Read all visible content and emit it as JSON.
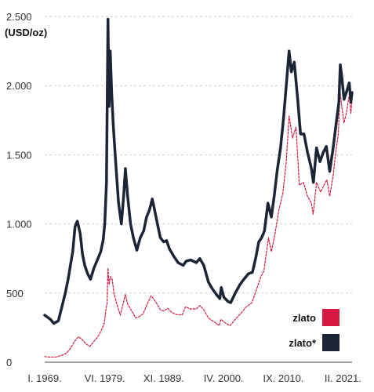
{
  "chart_data": {
    "type": "line",
    "y_unit": "(USD/oz)",
    "ylim": [
      0,
      2500
    ],
    "y_ticks": [
      {
        "value": 0,
        "label": "0"
      },
      {
        "value": 500,
        "label": "500"
      },
      {
        "value": 1000,
        "label": "1.000"
      },
      {
        "value": 1500,
        "label": "1.500"
      },
      {
        "value": 2000,
        "label": "2.000"
      },
      {
        "value": 2500,
        "label": "2.500"
      }
    ],
    "xlim": [
      1969.0,
      2022.7
    ],
    "x_ticks": [
      {
        "value": 1969.0,
        "label": "I. 1969."
      },
      {
        "value": 1979.5,
        "label": "VI. 1979."
      },
      {
        "value": 1989.8,
        "label": "XI. 1989."
      },
      {
        "value": 2000.25,
        "label": "IV. 2000."
      },
      {
        "value": 2010.7,
        "label": "IX. 2010."
      },
      {
        "value": 2021.1,
        "label": "II. 2021."
      }
    ],
    "grid": true,
    "legend_position": "bottom-right",
    "series": [
      {
        "name": "zlato",
        "color": "#d6173f",
        "style": "dashed",
        "points": [
          [
            1969.0,
            41
          ],
          [
            1970.0,
            36
          ],
          [
            1971.0,
            38
          ],
          [
            1972.0,
            50
          ],
          [
            1972.8,
            65
          ],
          [
            1973.5,
            100
          ],
          [
            1974.2,
            150
          ],
          [
            1974.9,
            185
          ],
          [
            1975.5,
            165
          ],
          [
            1976.3,
            130
          ],
          [
            1976.9,
            115
          ],
          [
            1977.5,
            145
          ],
          [
            1978.3,
            185
          ],
          [
            1978.9,
            230
          ],
          [
            1979.4,
            280
          ],
          [
            1979.7,
            380
          ],
          [
            1979.9,
            430
          ],
          [
            1980.05,
            680
          ],
          [
            1980.25,
            560
          ],
          [
            1980.5,
            620
          ],
          [
            1980.8,
            600
          ],
          [
            1981.1,
            500
          ],
          [
            1981.6,
            420
          ],
          [
            1982.2,
            340
          ],
          [
            1982.7,
            420
          ],
          [
            1983.1,
            490
          ],
          [
            1983.5,
            420
          ],
          [
            1984.2,
            370
          ],
          [
            1984.9,
            320
          ],
          [
            1985.5,
            330
          ],
          [
            1986.2,
            350
          ],
          [
            1986.9,
            420
          ],
          [
            1987.6,
            480
          ],
          [
            1987.9,
            465
          ],
          [
            1988.5,
            430
          ],
          [
            1989.2,
            380
          ],
          [
            1989.8,
            370
          ],
          [
            1990.5,
            390
          ],
          [
            1991.2,
            360
          ],
          [
            1992.0,
            345
          ],
          [
            1993.0,
            340
          ],
          [
            1993.6,
            400
          ],
          [
            1994.5,
            385
          ],
          [
            1995.5,
            385
          ],
          [
            1996.1,
            410
          ],
          [
            1996.8,
            380
          ],
          [
            1997.6,
            320
          ],
          [
            1998.5,
            295
          ],
          [
            1999.5,
            265
          ],
          [
            1999.8,
            310
          ],
          [
            2000.5,
            285
          ],
          [
            2001.4,
            265
          ],
          [
            2002.3,
            310
          ],
          [
            2003.2,
            350
          ],
          [
            2004.2,
            400
          ],
          [
            2005.2,
            430
          ],
          [
            2006.2,
            550
          ],
          [
            2006.8,
            620
          ],
          [
            2007.3,
            660
          ],
          [
            2008.1,
            900
          ],
          [
            2008.6,
            800
          ],
          [
            2009.2,
            920
          ],
          [
            2009.9,
            1100
          ],
          [
            2010.6,
            1220
          ],
          [
            2011.2,
            1450
          ],
          [
            2011.7,
            1780
          ],
          [
            2012.3,
            1620
          ],
          [
            2012.9,
            1700
          ],
          [
            2013.5,
            1280
          ],
          [
            2014.2,
            1300
          ],
          [
            2014.9,
            1200
          ],
          [
            2015.6,
            1150
          ],
          [
            2015.9,
            1070
          ],
          [
            2016.5,
            1300
          ],
          [
            2017.2,
            1230
          ],
          [
            2017.8,
            1280
          ],
          [
            2018.3,
            1320
          ],
          [
            2018.8,
            1200
          ],
          [
            2019.4,
            1350
          ],
          [
            2019.8,
            1500
          ],
          [
            2020.3,
            1650
          ],
          [
            2020.6,
            1960
          ],
          [
            2020.9,
            1850
          ],
          [
            2021.3,
            1730
          ],
          [
            2021.7,
            1800
          ],
          [
            2022.2,
            1930
          ],
          [
            2022.5,
            1800
          ],
          [
            2022.7,
            1900
          ]
        ]
      },
      {
        "name": "zlato*",
        "color": "#1c2536",
        "style": "solid",
        "points": [
          [
            1969.0,
            340
          ],
          [
            1970.0,
            310
          ],
          [
            1970.6,
            280
          ],
          [
            1971.4,
            300
          ],
          [
            1972.0,
            400
          ],
          [
            1972.6,
            500
          ],
          [
            1973.1,
            600
          ],
          [
            1973.5,
            700
          ],
          [
            1973.9,
            800
          ],
          [
            1974.3,
            980
          ],
          [
            1974.7,
            1020
          ],
          [
            1975.2,
            930
          ],
          [
            1975.6,
            780
          ],
          [
            1976.0,
            700
          ],
          [
            1976.5,
            640
          ],
          [
            1977.0,
            600
          ],
          [
            1977.6,
            680
          ],
          [
            1978.2,
            740
          ],
          [
            1978.8,
            800
          ],
          [
            1979.2,
            880
          ],
          [
            1979.5,
            1000
          ],
          [
            1979.8,
            1300
          ],
          [
            1980.05,
            2480
          ],
          [
            1980.25,
            1850
          ],
          [
            1980.45,
            2250
          ],
          [
            1980.7,
            1950
          ],
          [
            1981.0,
            1700
          ],
          [
            1981.4,
            1450
          ],
          [
            1981.9,
            1150
          ],
          [
            1982.4,
            1000
          ],
          [
            1982.8,
            1200
          ],
          [
            1983.1,
            1400
          ],
          [
            1983.5,
            1200
          ],
          [
            1984.0,
            1000
          ],
          [
            1984.5,
            900
          ],
          [
            1985.1,
            810
          ],
          [
            1985.7,
            900
          ],
          [
            1986.3,
            950
          ],
          [
            1986.8,
            1050
          ],
          [
            1987.3,
            1100
          ],
          [
            1987.8,
            1180
          ],
          [
            1988.2,
            1100
          ],
          [
            1988.7,
            1000
          ],
          [
            1989.2,
            900
          ],
          [
            1989.8,
            870
          ],
          [
            1990.3,
            880
          ],
          [
            1990.8,
            820
          ],
          [
            1991.5,
            770
          ],
          [
            1992.3,
            720
          ],
          [
            1993.2,
            700
          ],
          [
            1993.7,
            730
          ],
          [
            1994.5,
            740
          ],
          [
            1995.5,
            720
          ],
          [
            1996.1,
            750
          ],
          [
            1996.8,
            700
          ],
          [
            1997.6,
            580
          ],
          [
            1998.3,
            530
          ],
          [
            1999.0,
            490
          ],
          [
            1999.6,
            460
          ],
          [
            1999.85,
            540
          ],
          [
            2000.3,
            470
          ],
          [
            2001.0,
            440
          ],
          [
            2001.5,
            430
          ],
          [
            2002.3,
            500
          ],
          [
            2003.1,
            560
          ],
          [
            2003.8,
            600
          ],
          [
            2004.6,
            640
          ],
          [
            2005.3,
            650
          ],
          [
            2005.9,
            760
          ],
          [
            2006.4,
            870
          ],
          [
            2006.9,
            900
          ],
          [
            2007.4,
            950
          ],
          [
            2008.0,
            1150
          ],
          [
            2008.6,
            1050
          ],
          [
            2009.1,
            1200
          ],
          [
            2009.6,
            1380
          ],
          [
            2010.2,
            1550
          ],
          [
            2010.7,
            1750
          ],
          [
            2011.2,
            2000
          ],
          [
            2011.7,
            2250
          ],
          [
            2012.1,
            2100
          ],
          [
            2012.6,
            2170
          ],
          [
            2013.2,
            1900
          ],
          [
            2013.7,
            1650
          ],
          [
            2014.3,
            1650
          ],
          [
            2014.9,
            1520
          ],
          [
            2015.6,
            1400
          ],
          [
            2015.95,
            1300
          ],
          [
            2016.5,
            1550
          ],
          [
            2017.1,
            1450
          ],
          [
            2017.7,
            1520
          ],
          [
            2018.2,
            1560
          ],
          [
            2018.8,
            1380
          ],
          [
            2019.4,
            1550
          ],
          [
            2019.9,
            1720
          ],
          [
            2020.4,
            1880
          ],
          [
            2020.65,
            2150
          ],
          [
            2020.95,
            2050
          ],
          [
            2021.3,
            1900
          ],
          [
            2021.7,
            1950
          ],
          [
            2022.2,
            2020
          ],
          [
            2022.5,
            1880
          ],
          [
            2022.7,
            1950
          ]
        ]
      }
    ],
    "legend": [
      {
        "label": "zlato",
        "color": "#d6173f"
      },
      {
        "label": "zlato*",
        "color": "#1c2536"
      }
    ]
  }
}
